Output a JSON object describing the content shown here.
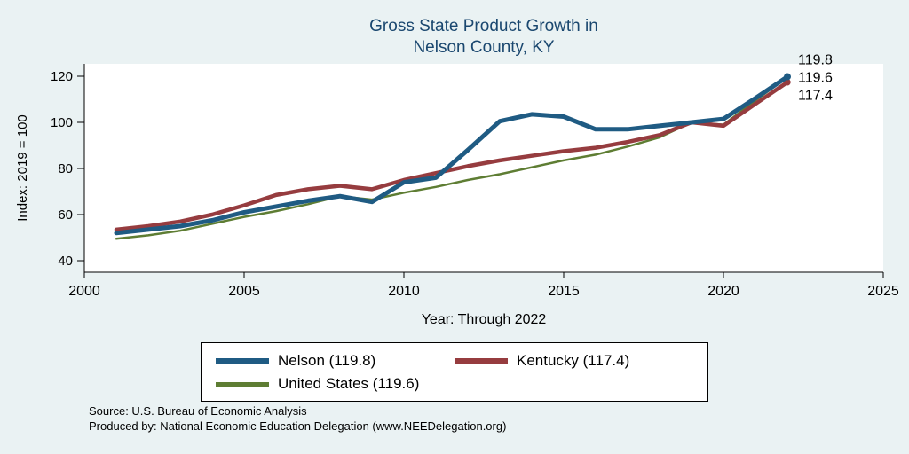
{
  "page": {
    "background": "#eaf2f3",
    "source_line1": "Source: U.S. Bureau of Economic Analysis",
    "source_line2": "Produced by: National Economic Education Delegation (www.NEEDelegation.org)"
  },
  "chart_data": {
    "type": "line",
    "title_line1": "Gross State Product Growth in",
    "title_line2": "Nelson County, KY",
    "xlabel": "Year: Through 2022",
    "ylabel": "Index: 2019 = 100",
    "xlim": [
      2000,
      2025
    ],
    "ylim": [
      40,
      120
    ],
    "xticks": [
      2000,
      2005,
      2010,
      2015,
      2020,
      2025
    ],
    "yticks": [
      40,
      60,
      80,
      100,
      120
    ],
    "grid": false,
    "legend_position": "bottom",
    "x": [
      2001,
      2002,
      2003,
      2004,
      2005,
      2006,
      2007,
      2008,
      2009,
      2010,
      2011,
      2012,
      2013,
      2014,
      2015,
      2016,
      2017,
      2018,
      2019,
      2020,
      2021,
      2022
    ],
    "series": [
      {
        "name": "Nelson",
        "legend_label": "Nelson  (119.8)",
        "color": "#1f5b83",
        "width": 5,
        "end_label": "119.8",
        "values": [
          52,
          53.5,
          55,
          57.5,
          61,
          63.5,
          66,
          68,
          65.5,
          74,
          76,
          88,
          100.5,
          103.5,
          102.5,
          97,
          97,
          98.5,
          100,
          101.5,
          110.5,
          119.8
        ]
      },
      {
        "name": "Kentucky",
        "legend_label": "Kentucky (117.4)",
        "color": "#963c3f",
        "width": 4.5,
        "end_label": "117.4",
        "values": [
          53.5,
          55,
          57,
          60,
          64,
          68.5,
          71,
          72.5,
          71,
          75,
          78,
          81,
          83.5,
          85.5,
          87.5,
          89,
          91.5,
          94.5,
          100,
          98.5,
          108,
          117.4
        ]
      },
      {
        "name": "United States",
        "legend_label": "United States (119.6)",
        "color": "#5e7d33",
        "width": 2.5,
        "end_label": "119.6",
        "values": [
          49.5,
          51,
          53,
          56,
          59,
          61.5,
          64.5,
          68,
          66.5,
          69.5,
          72,
          75,
          77.5,
          80.5,
          83.5,
          86,
          89.5,
          93.5,
          100,
          99,
          109.5,
          119.6
        ]
      }
    ],
    "end_labels": [
      "119.8",
      "119.6",
      "117.4"
    ]
  }
}
